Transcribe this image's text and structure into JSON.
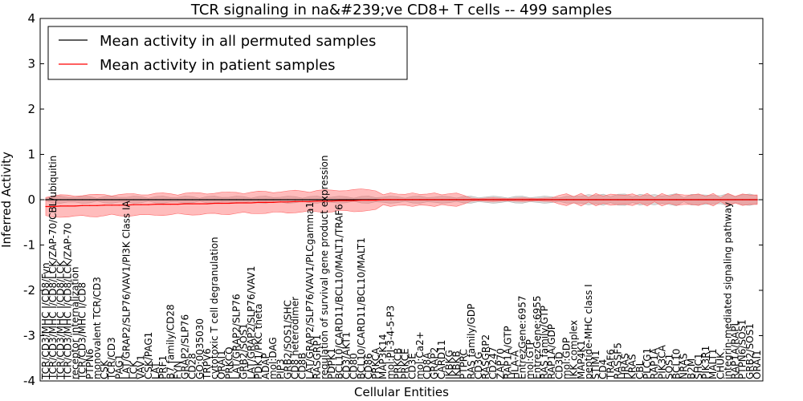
{
  "chart_data": {
    "type": "line",
    "title": "TCR signaling in na&#239;ve CD8+ T cells -- 499 samples",
    "xlabel": "Cellular Entities",
    "ylabel": "Inferred Activity",
    "ylim": [
      -4,
      4
    ],
    "yticks": [
      -4,
      -3,
      -2,
      -1,
      0,
      1,
      2,
      3,
      4
    ],
    "legend_position": "top-left",
    "categories": [
      "TCR/CD3/MHC I/CD8/Fyn",
      "TCR/CD3/MHC I/CD8/LCK/ZAP-70/CBL/ubiquitin",
      "TCR/CD3/MHC I/CD8/LCK",
      "TCR/CD3/MHC I/CD8/LCK/ZAP-70",
      "receptor internalization",
      "TCR/CD3/MHC I/CD8",
      "PTPN6",
      "monovalent TCR/CD3",
      "CSK",
      "TCR/CD3",
      "PAG1",
      "LAT/GRAP2/SLP76/VAV1/PI3K Class IA",
      "LCK",
      "VAV1",
      "CSK/PAG1",
      "LAT",
      "PRF1",
      "B7 family/CD28",
      "FYN",
      "GRAP2/SLP76",
      "CD28",
      "GO:0035030",
      "TRPV6",
      "cytotoxic T cell degranulation",
      "ORAI1",
      "PRKCQ",
      "LAT/GRAP2/SLP76",
      "GRB2/SOS1",
      "LAT/GRAP2/SLP76/VAV1",
      "PDK1/PKC theta",
      "ADAP",
      "mol:DAG",
      "PIP3",
      "GRB2/SOS1/SHC",
      "CD8 heterodimer",
      "CD8B",
      "LAT/GRAP2/SLP76/VAV1/PLCgamma1",
      "RASGRP1",
      "regulation of survival gene product expression",
      "PDPK1",
      "BCL10/CARD11/BCL10/MALT1/TRAF6",
      "CD3/AKT1",
      "CD80",
      "BCL10/CARD11/BCL10/MALT1",
      "CD86",
      "PRKCA",
      "MAP3K14",
      "mol:PI-3-4-5-P3",
      "PRKCB",
      "PRKCE",
      "CD3E",
      "mol:Ca2+",
      "CD8A",
      "GRAP2",
      "CARD11",
      "IKBKG",
      "IKBKB",
      "PTPRC",
      "RAS family/GDP",
      "CD3G",
      "RASGRP2",
      "CD247",
      "ZAP70",
      "RAP1A/GTP",
      "HLA-A",
      "EntrezGene:6957",
      "mol:GTP",
      "EntrezGene:6955",
      "RAS family/GTP",
      "RAP1A/GDP",
      "CD3D",
      "mol:GDP",
      "IKK complex",
      "MAP4K1",
      "peptide-MHC class I",
      "STIM1",
      "CD4",
      "TRAF6",
      "RASSF5",
      "HRAS",
      "KRAS",
      "CBL",
      "PLCG1",
      "RAP1A",
      "PIK3CA",
      "SOS1",
      "BCL10",
      "NRAS",
      "B2M",
      "SHC1",
      "PIK3R1",
      "MALT1",
      "CHUK",
      "integrin-mediated signaling pathway",
      "RAP1A/RAPL",
      "PTPN6/SOS1",
      "GRB2/SOS1",
      "ORAI1"
    ],
    "series": [
      {
        "name": "Mean activity in all permuted samples",
        "color": "#000000",
        "values": [
          0,
          0,
          0,
          0,
          0,
          0,
          0,
          0,
          0,
          0,
          0,
          0,
          0,
          0,
          0,
          0,
          0,
          0,
          0,
          0,
          0,
          0,
          0,
          0,
          0,
          0,
          0,
          0,
          0,
          0,
          0,
          0,
          0,
          0,
          0,
          0,
          0,
          0,
          0,
          0,
          0,
          0,
          0,
          0,
          0,
          0,
          0,
          0,
          0,
          0,
          0,
          0,
          0,
          0,
          0,
          0,
          0,
          0,
          0,
          0,
          0,
          0,
          0,
          0,
          0,
          0,
          0,
          0,
          0,
          0,
          0,
          0,
          0,
          0,
          0,
          0,
          0,
          0,
          0,
          0,
          0,
          0,
          0,
          0,
          0,
          0,
          0,
          0,
          0,
          0,
          0,
          0,
          0,
          0,
          0,
          0,
          0,
          0
        ]
      },
      {
        "name": "Mean activity in patient samples",
        "color": "#ff0000",
        "values": [
          -0.15,
          -0.15,
          -0.14,
          -0.14,
          -0.14,
          -0.13,
          -0.13,
          -0.13,
          -0.12,
          -0.12,
          -0.12,
          -0.12,
          -0.11,
          -0.11,
          -0.11,
          -0.1,
          -0.1,
          -0.1,
          -0.1,
          -0.09,
          -0.09,
          -0.09,
          -0.09,
          -0.08,
          -0.08,
          -0.08,
          -0.07,
          -0.07,
          -0.07,
          -0.06,
          -0.06,
          -0.06,
          -0.05,
          -0.05,
          -0.04,
          -0.04,
          -0.04,
          -0.03,
          -0.03,
          -0.03,
          -0.02,
          -0.02,
          -0.02,
          -0.01,
          -0.01,
          -0.01,
          0,
          0,
          0,
          0,
          0,
          0,
          0,
          0,
          0,
          0,
          0,
          0,
          0,
          0,
          0,
          0,
          0,
          0,
          0,
          0,
          0,
          0,
          0,
          0,
          0,
          0,
          0,
          0,
          0,
          0,
          0,
          0,
          0,
          0,
          0,
          0,
          0,
          0,
          0,
          0,
          0,
          0,
          0,
          0,
          0,
          0,
          0,
          0,
          0,
          0,
          0,
          0
        ]
      }
    ]
  }
}
